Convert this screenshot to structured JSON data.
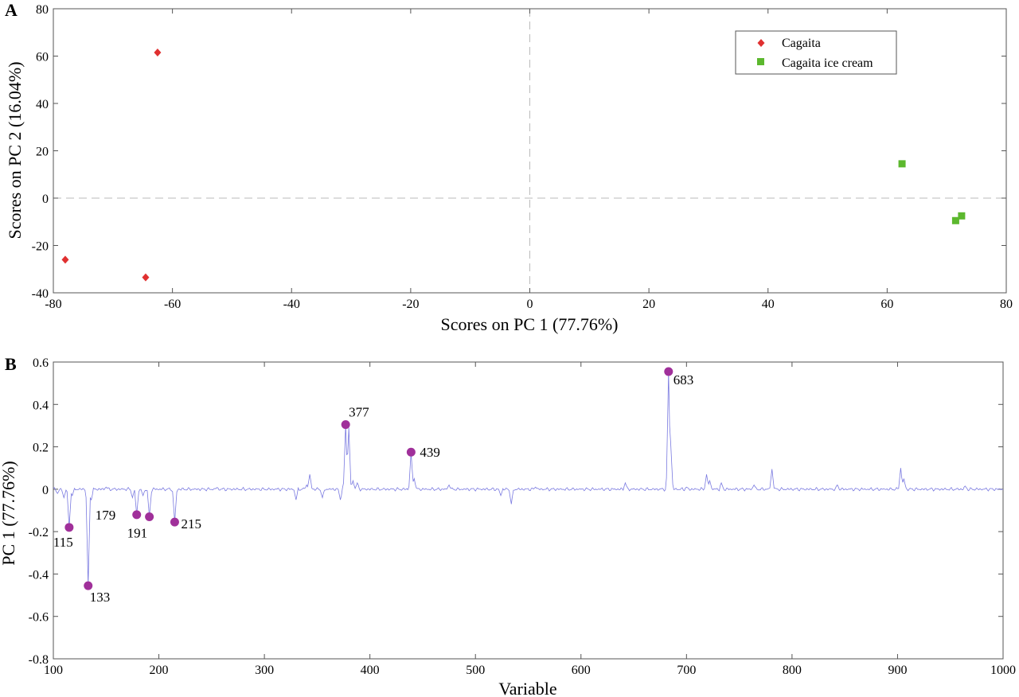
{
  "chart_data": [
    {
      "panel_label": "A",
      "type": "scatter",
      "xlabel": "Scores on PC 1 (77.76%)",
      "ylabel": "Scores on PC 2 (16.04%)",
      "xlim": [
        -80,
        80
      ],
      "ylim": [
        -40,
        80
      ],
      "xticks": [
        -80,
        -60,
        -40,
        -20,
        0,
        20,
        40,
        60,
        80
      ],
      "yticks": [
        -40,
        -20,
        0,
        20,
        40,
        60,
        80
      ],
      "reference_lines": "dashed lines at x=0 and y=0",
      "legend_position": "top-right",
      "series": [
        {
          "name": "Cagaita",
          "marker": "diamond",
          "color": "#e03030",
          "points": [
            [
              -62.5,
              61.5
            ],
            [
              -78,
              -26
            ],
            [
              -64.5,
              -33.5
            ]
          ]
        },
        {
          "name": "Cagaita ice cream",
          "marker": "square",
          "color": "#5cb82e",
          "points": [
            [
              62.5,
              14.5
            ],
            [
              71.5,
              -9.5
            ],
            [
              72.5,
              -7.5
            ]
          ]
        }
      ]
    },
    {
      "panel_label": "B",
      "type": "line",
      "xlabel": "Variable",
      "ylabel": "PC 1 (77.76%)",
      "xlim": [
        100,
        1000
      ],
      "ylim": [
        -0.8,
        0.6
      ],
      "xticks": [
        100,
        200,
        300,
        400,
        500,
        600,
        700,
        800,
        900,
        1000
      ],
      "yticks": [
        -0.8,
        -0.6,
        -0.4,
        -0.2,
        0,
        0.2,
        0.4,
        0.6
      ],
      "line_color": "#7a7ae0",
      "highlight_color": "#a0309a",
      "baseline_noise": 0.006,
      "features": [
        {
          "x": 104,
          "y": -0.02
        },
        {
          "x": 110,
          "y": -0.04
        },
        {
          "x": 115,
          "y": -0.18
        },
        {
          "x": 118,
          "y": -0.03
        },
        {
          "x": 133,
          "y": -0.455
        },
        {
          "x": 136,
          "y": -0.05
        },
        {
          "x": 150,
          "y": 0.01
        },
        {
          "x": 175,
          "y": -0.04
        },
        {
          "x": 179,
          "y": -0.12
        },
        {
          "x": 185,
          "y": -0.03
        },
        {
          "x": 191,
          "y": -0.13
        },
        {
          "x": 215,
          "y": -0.155
        },
        {
          "x": 255,
          "y": 0.008
        },
        {
          "x": 330,
          "y": -0.05
        },
        {
          "x": 340,
          "y": 0.02
        },
        {
          "x": 343,
          "y": 0.07
        },
        {
          "x": 355,
          "y": -0.04
        },
        {
          "x": 372,
          "y": -0.05
        },
        {
          "x": 377,
          "y": 0.305
        },
        {
          "x": 380,
          "y": 0.29
        },
        {
          "x": 384,
          "y": 0.04
        },
        {
          "x": 388,
          "y": 0.03
        },
        {
          "x": 439,
          "y": 0.175
        },
        {
          "x": 442,
          "y": 0.05
        },
        {
          "x": 475,
          "y": 0.02
        },
        {
          "x": 524,
          "y": -0.03
        },
        {
          "x": 534,
          "y": -0.07
        },
        {
          "x": 557,
          "y": 0.01
        },
        {
          "x": 642,
          "y": 0.03
        },
        {
          "x": 683,
          "y": 0.555
        },
        {
          "x": 685,
          "y": 0.22
        },
        {
          "x": 700,
          "y": 0.01
        },
        {
          "x": 719,
          "y": 0.07
        },
        {
          "x": 722,
          "y": 0.04
        },
        {
          "x": 733,
          "y": 0.03
        },
        {
          "x": 764,
          "y": 0.02
        },
        {
          "x": 781,
          "y": 0.095
        },
        {
          "x": 843,
          "y": 0.02
        },
        {
          "x": 903,
          "y": 0.1
        },
        {
          "x": 906,
          "y": 0.05
        },
        {
          "x": 964,
          "y": 0.015
        }
      ],
      "labeled_points": [
        {
          "x": 115,
          "y": -0.18,
          "label": "115"
        },
        {
          "x": 133,
          "y": -0.455,
          "label": "133"
        },
        {
          "x": 179,
          "y": -0.12,
          "label": "179"
        },
        {
          "x": 191,
          "y": -0.13,
          "label": "191"
        },
        {
          "x": 215,
          "y": -0.155,
          "label": "215"
        },
        {
          "x": 377,
          "y": 0.305,
          "label": "377"
        },
        {
          "x": 439,
          "y": 0.175,
          "label": "439"
        },
        {
          "x": 683,
          "y": 0.555,
          "label": "683"
        }
      ]
    }
  ]
}
